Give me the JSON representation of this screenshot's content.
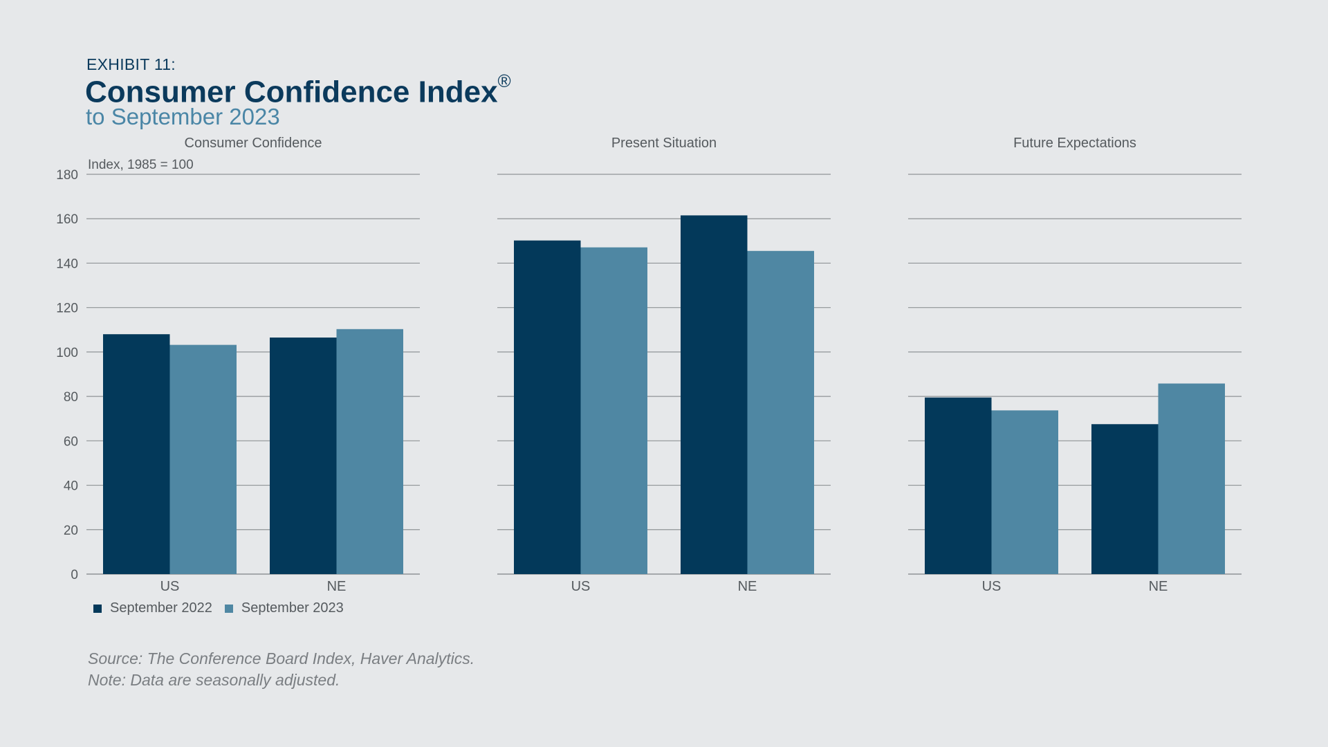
{
  "header": {
    "exhibit": "EXHIBIT 11:",
    "title": "Consumer Confidence Index",
    "title_mark": "®",
    "subtitle": "to September 2023"
  },
  "colors": {
    "sep2022": "#03395a",
    "sep2023": "#4f87a3",
    "grid": "#8f9396",
    "text": "#555a5e"
  },
  "chart_data": [
    {
      "type": "bar",
      "title": "Consumer Confidence",
      "ylabel": "Index, 1985 = 100",
      "ylim": [
        0,
        180
      ],
      "yticks": [
        0,
        20,
        40,
        60,
        80,
        100,
        120,
        140,
        160,
        180
      ],
      "categories": [
        "US",
        "NE"
      ],
      "series": [
        {
          "name": "September 2022",
          "values": [
            108,
            106.5
          ]
        },
        {
          "name": "September 2023",
          "values": [
            103.2,
            110.3
          ]
        }
      ]
    },
    {
      "type": "bar",
      "title": "Present Situation",
      "ylim": [
        0,
        180
      ],
      "categories": [
        "US",
        "NE"
      ],
      "series": [
        {
          "name": "September 2022",
          "values": [
            150.2,
            161.5
          ]
        },
        {
          "name": "September 2023",
          "values": [
            147.1,
            145.5
          ]
        }
      ]
    },
    {
      "type": "bar",
      "title": "Future Expectations",
      "ylim": [
        0,
        180
      ],
      "categories": [
        "US",
        "NE"
      ],
      "series": [
        {
          "name": "September 2022",
          "values": [
            79.5,
            67.5
          ]
        },
        {
          "name": "September 2023",
          "values": [
            73.7,
            85.8
          ]
        }
      ]
    }
  ],
  "legend": [
    "September 2022",
    "September 2023"
  ],
  "footer": {
    "source": "Source: The Conference Board Index, Haver Analytics.",
    "note": "Note: Data are seasonally adjusted."
  }
}
